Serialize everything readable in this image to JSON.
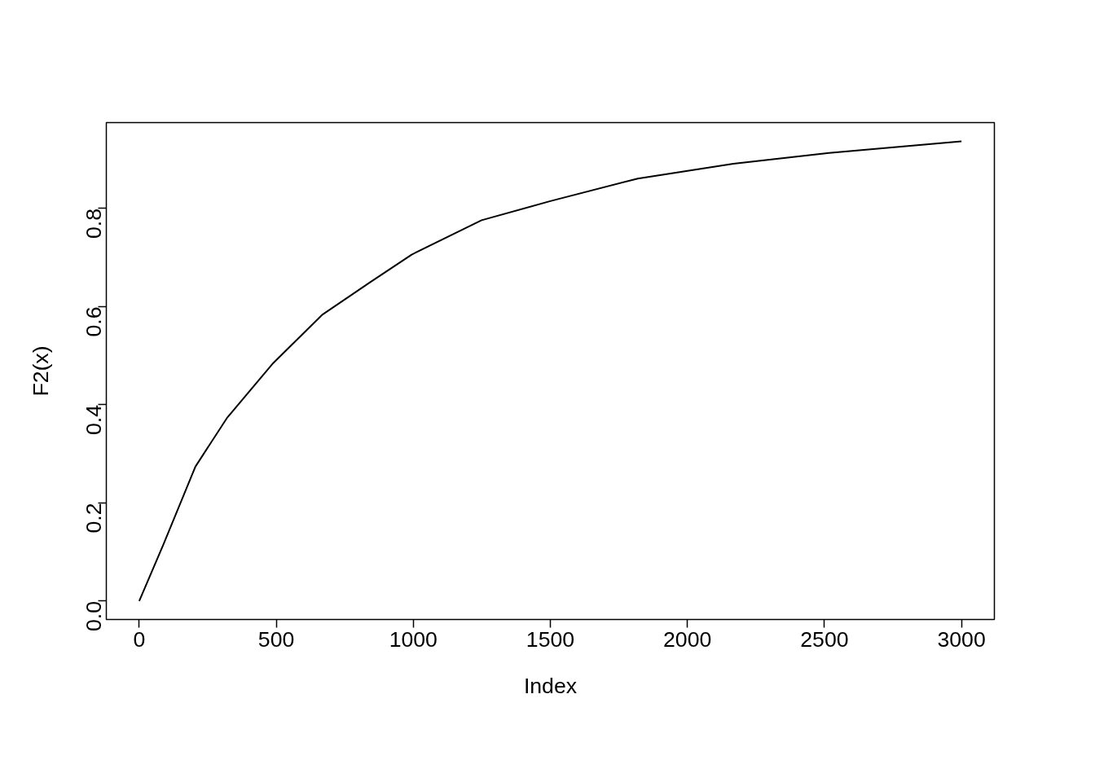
{
  "chart_data": {
    "type": "line",
    "xlabel": "Index",
    "ylabel": "F2(x)",
    "x": [
      0,
      88,
      205,
      320,
      489,
      669,
      843,
      994,
      1249,
      1500,
      1819,
      2168,
      2517,
      3000
    ],
    "series": [
      {
        "color": "#000000",
        "values": [
          0.0,
          0.115,
          0.274,
          0.373,
          0.485,
          0.584,
          0.65,
          0.706,
          0.776,
          0.815,
          0.861,
          0.891,
          0.913,
          0.937
        ]
      }
    ],
    "xlim": [
      -120,
      3120
    ],
    "ylim": [
      -0.0375,
      0.975
    ],
    "xticks": [
      0,
      500,
      1000,
      1500,
      2000,
      2500,
      3000
    ],
    "yticks": [
      {
        "value": 0,
        "label": "0.0"
      },
      {
        "value": 0.2,
        "label": "0.2"
      },
      {
        "value": 0.4,
        "label": "0.4"
      },
      {
        "value": 0.6,
        "label": "0.6"
      },
      {
        "value": 0.8,
        "label": "0.8"
      }
    ],
    "grid": false,
    "marker": "none",
    "line_style": "solid"
  }
}
